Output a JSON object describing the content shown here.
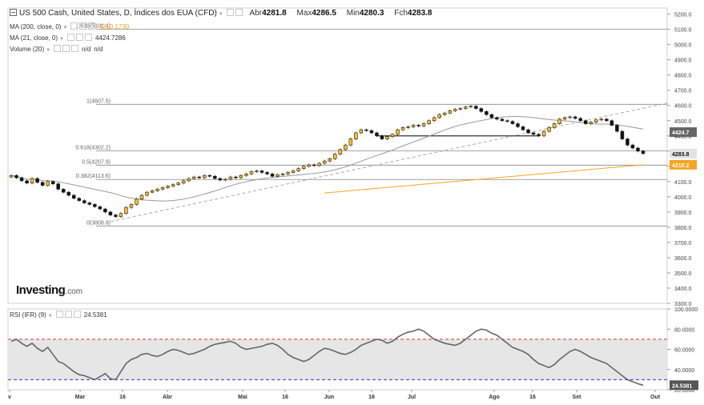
{
  "header": {
    "title": "US 500 Cash, United States, D, Índices dos EUA (CFD)",
    "ohlc": [
      {
        "label": "Abr",
        "value": "4281.8"
      },
      {
        "label": "Max",
        "value": "4286.5"
      },
      {
        "label": "Min",
        "value": "4280.3"
      },
      {
        "label": "Fch",
        "value": "4283.8"
      }
    ]
  },
  "indicators": [
    {
      "label": "MA (200, close, 0)",
      "value": "4210.1730",
      "color": "#f5a623"
    },
    {
      "label": "MA (21, close, 0)",
      "value": "4424.7286",
      "color": "#999999"
    },
    {
      "label": "Volume (20)",
      "value": "n/d",
      "value2": "n/d"
    }
  ],
  "rsi_panel": {
    "label": "RSI (IFR) (9)",
    "value": "24.5381"
  },
  "logo": {
    "text": "Investing",
    "suffix": ".com"
  },
  "chart_data": {
    "type": "candlestick",
    "title": "US 500 Cash, United States, D, Índices dos EUA (CFD)",
    "x_ticks": [
      "v",
      "Mar",
      "16",
      "Abr",
      "Mai",
      "16",
      "Jun",
      "16",
      "Jul",
      "Ago",
      "16",
      "Set",
      "Out"
    ],
    "y_ticks": [
      "5200.0",
      "5100.0",
      "5000.0",
      "4900.0",
      "4800.0",
      "4700.0",
      "4600.0",
      "4500.0",
      "4400.0",
      "4300.0",
      "4200.0",
      "4100.0",
      "4000.0",
      "3900.0",
      "3800.0",
      "3700.0",
      "3600.0",
      "3500.0",
      "3400.0",
      "3300.0"
    ],
    "ylim": [
      3300,
      5240
    ],
    "price_labels": [
      {
        "text": "4424.7",
        "value": 4424.7,
        "bg": "#666666"
      },
      {
        "text": "4283.8",
        "value": 4283.8,
        "bg": "#e3e3e3"
      },
      {
        "text": "4210.2",
        "value": 4210.2,
        "bg": "#f5a623"
      }
    ],
    "fibonacci": [
      {
        "label": "1.618(5101.4)",
        "value": 5101.4
      },
      {
        "label": "1(4607.5)",
        "value": 4607.5
      },
      {
        "label": "0.618(4302.2)",
        "value": 4302.2
      },
      {
        "label": "0.5(4207.9)",
        "value": 4207.9
      },
      {
        "label": "0.382(4113.6)",
        "value": 4113.6
      },
      {
        "label": "0(3808.3)",
        "value": 3808.3
      }
    ],
    "close_series": [
      4140,
      4125,
      4105,
      4090,
      4120,
      4095,
      4075,
      4100,
      4085,
      4050,
      4030,
      4010,
      3990,
      3975,
      3960,
      3950,
      3935,
      3920,
      3900,
      3880,
      3870,
      3890,
      3930,
      3950,
      3985,
      4010,
      4030,
      4040,
      4050,
      4060,
      4070,
      4080,
      4090,
      4105,
      4120,
      4130,
      4125,
      4140,
      4135,
      4120,
      4110,
      4115,
      4130,
      4125,
      4140,
      4150,
      4165,
      4170,
      4160,
      4150,
      4135,
      4145,
      4150,
      4160,
      4170,
      4185,
      4200,
      4210,
      4205,
      4220,
      4235,
      4250,
      4280,
      4310,
      4340,
      4380,
      4420,
      4440,
      4435,
      4420,
      4400,
      4380,
      4395,
      4410,
      4440,
      4455,
      4460,
      4470,
      4465,
      4480,
      4500,
      4520,
      4540,
      4550,
      4565,
      4575,
      4580,
      4590,
      4595,
      4580,
      4560,
      4540,
      4520,
      4510,
      4500,
      4495,
      4480,
      4460,
      4440,
      4420,
      4410,
      4400,
      4430,
      4455,
      4480,
      4510,
      4520,
      4525,
      4515,
      4500,
      4480,
      4490,
      4505,
      4510,
      4500,
      4470,
      4430,
      4380,
      4340,
      4320,
      4300,
      4283.8
    ],
    "ma200_value": 4210.17,
    "ma21_value": 4424.73,
    "rsi": {
      "ylim": [
        20,
        100
      ],
      "y_ticks": [
        "100.0000",
        "80.0000",
        "60.0000",
        "40.0000",
        "20.0000"
      ],
      "overbought": 70,
      "oversold": 30,
      "last": 24.5381,
      "values": [
        68,
        70,
        66,
        63,
        66,
        61,
        58,
        62,
        55,
        48,
        46,
        42,
        38,
        35,
        34,
        32,
        30,
        33,
        36,
        31,
        30,
        38,
        46,
        50,
        52,
        55,
        56,
        54,
        53,
        55,
        58,
        60,
        59,
        57,
        55,
        56,
        58,
        60,
        63,
        65,
        66,
        67,
        68,
        66,
        62,
        60,
        61,
        62,
        63,
        65,
        66,
        64,
        60,
        55,
        52,
        50,
        48,
        50,
        54,
        58,
        61,
        60,
        58,
        56,
        55,
        57,
        60,
        64,
        66,
        68,
        70,
        69,
        66,
        68,
        72,
        75,
        77,
        78,
        80,
        78,
        74,
        70,
        68,
        66,
        65,
        64,
        66,
        70,
        74,
        78,
        80,
        79,
        76,
        74,
        70,
        66,
        62,
        60,
        58,
        55,
        50,
        46,
        44,
        42,
        45,
        50,
        54,
        58,
        60,
        58,
        55,
        52,
        50,
        48,
        46,
        42,
        38,
        34,
        30,
        28,
        26,
        24.5
      ]
    }
  }
}
